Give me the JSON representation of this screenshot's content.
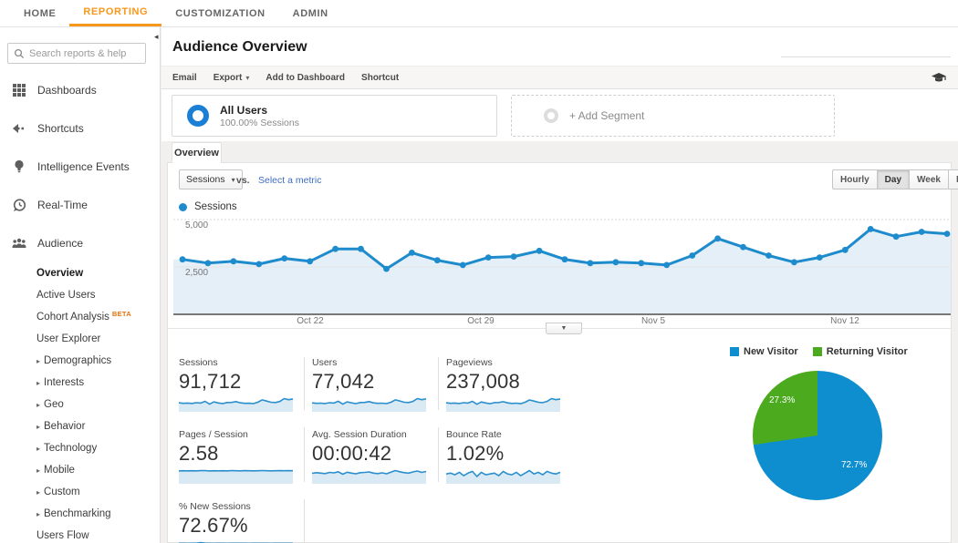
{
  "nav": {
    "items": [
      {
        "label": "HOME"
      },
      {
        "label": "REPORTING",
        "active": true
      },
      {
        "label": "CUSTOMIZATION"
      },
      {
        "label": "ADMIN"
      }
    ]
  },
  "sidebar": {
    "search_placeholder": "Search reports & help",
    "items": [
      {
        "label": "Dashboards",
        "icon": "dashboards-grid-icon"
      },
      {
        "label": "Shortcuts",
        "icon": "shortcuts-arrow-icon"
      },
      {
        "label": "Intelligence Events",
        "icon": "intelligence-bulb-icon"
      },
      {
        "label": "Real-Time",
        "icon": "real-time-clock-icon"
      },
      {
        "label": "Audience",
        "icon": "audience-people-icon"
      }
    ],
    "audience_children": [
      {
        "label": "Overview",
        "active": true
      },
      {
        "label": "Active Users"
      },
      {
        "label": "Cohort Analysis",
        "badge": "BETA"
      },
      {
        "label": "User Explorer"
      },
      {
        "label": "Demographics",
        "expandable": true
      },
      {
        "label": "Interests",
        "expandable": true
      },
      {
        "label": "Geo",
        "expandable": true
      },
      {
        "label": "Behavior",
        "expandable": true
      },
      {
        "label": "Technology",
        "expandable": true
      },
      {
        "label": "Mobile",
        "expandable": true
      },
      {
        "label": "Custom",
        "expandable": true
      },
      {
        "label": "Benchmarking",
        "expandable": true
      },
      {
        "label": "Users Flow"
      }
    ]
  },
  "header": {
    "title": "Audience Overview",
    "toolbar": {
      "email": "Email",
      "export": "Export",
      "add_to_dashboard": "Add to Dashboard",
      "shortcut": "Shortcut"
    }
  },
  "segments": {
    "all_users_title": "All Users",
    "all_users_subtitle": "100.00% Sessions",
    "add_segment_label": "+ Add Segment"
  },
  "tab_label": "Overview",
  "controls": {
    "metric_dropdown": "Sessions",
    "vs_label": "vs.",
    "select_metric_link": "Select a metric",
    "granularity": [
      "Hourly",
      "Day",
      "Week",
      "Month"
    ],
    "active_granularity": "Day"
  },
  "colors": {
    "accent_orange": "#f7981c",
    "line_blue": "#1e8bcd",
    "area_fill": "#e4eff8",
    "spark_blue": "#2b8fcd",
    "spark_fill": "#daeaf5",
    "pie_blue": "#0f8ecf",
    "pie_green": "#4caa1f"
  },
  "chart_data": [
    {
      "id": "sessions-timeline",
      "type": "area",
      "title": "Sessions",
      "x_ticks": [
        "Oct 22",
        "Oct 29",
        "Nov 5",
        "Nov 12"
      ],
      "y_tick_labels": [
        "5,000",
        "2,500"
      ],
      "y_ticks": [
        5000,
        2500
      ],
      "ylim": [
        0,
        5000
      ],
      "grid": "horizontal",
      "series": [
        {
          "name": "Sessions",
          "color": "#1e8bcd",
          "values": [
            2900,
            2700,
            2800,
            2650,
            2950,
            2800,
            3450,
            3450,
            2400,
            3250,
            2850,
            2600,
            3000,
            3050,
            3350,
            2900,
            2700,
            2750,
            2700,
            2600,
            3100,
            4000,
            3550,
            3100,
            2750,
            3000,
            3400,
            4500,
            4100,
            4350,
            4250
          ]
        }
      ]
    },
    {
      "id": "spark-sessions",
      "type": "area",
      "metric": "Sessions",
      "display_value": "91,712",
      "values": [
        2900,
        2700,
        2800,
        2650,
        2950,
        2800,
        3450,
        2400,
        3250,
        2850,
        2600,
        3000,
        3050,
        3350,
        2900,
        2700,
        2750,
        2600,
        3100,
        4000,
        3550,
        3100,
        3000,
        3400,
        4500,
        4100,
        4350
      ]
    },
    {
      "id": "spark-users",
      "type": "area",
      "metric": "Users",
      "display_value": "77,042",
      "values": [
        2400,
        2250,
        2300,
        2200,
        2450,
        2350,
        2900,
        2000,
        2700,
        2400,
        2150,
        2500,
        2550,
        2800,
        2400,
        2250,
        2300,
        2150,
        2600,
        3350,
        3000,
        2600,
        2500,
        2850,
        3750,
        3400,
        3650
      ]
    },
    {
      "id": "spark-pageviews",
      "type": "area",
      "metric": "Pageviews",
      "display_value": "237,008",
      "values": [
        7500,
        7000,
        7200,
        6800,
        7600,
        7200,
        8900,
        6100,
        8300,
        7300,
        6600,
        7700,
        7800,
        8600,
        7400,
        6900,
        7100,
        6600,
        8000,
        10300,
        9200,
        8000,
        7700,
        8800,
        11600,
        10500,
        11200
      ]
    },
    {
      "id": "spark-pages-session",
      "type": "area",
      "metric": "Pages / Session",
      "display_value": "2.58",
      "values": [
        2.55,
        2.57,
        2.56,
        2.58,
        2.55,
        2.59,
        2.62,
        2.54,
        2.58,
        2.56,
        2.57,
        2.55,
        2.6,
        2.58,
        2.56,
        2.59,
        2.57,
        2.55,
        2.58,
        2.61,
        2.57,
        2.56,
        2.58,
        2.6,
        2.57,
        2.59,
        2.58
      ]
    },
    {
      "id": "spark-duration",
      "type": "area",
      "metric": "Avg. Session Duration",
      "display_value": "00:00:42",
      "values": [
        40,
        43,
        41,
        39,
        44,
        42,
        47,
        36,
        45,
        41,
        38,
        43,
        44,
        46,
        41,
        39,
        42,
        38,
        45,
        52,
        47,
        43,
        41,
        46,
        50,
        44,
        48
      ]
    },
    {
      "id": "spark-bounce",
      "type": "area",
      "metric": "Bounce Rate",
      "display_value": "1.02%",
      "values": [
        1.0,
        1.1,
        0.9,
        1.2,
        0.8,
        1.1,
        1.3,
        0.7,
        1.2,
        0.9,
        1.0,
        1.1,
        0.8,
        1.3,
        1.0,
        0.9,
        1.2,
        0.8,
        1.1,
        1.4,
        1.0,
        1.2,
        0.9,
        1.3,
        1.1,
        1.0,
        1.2
      ]
    },
    {
      "id": "spark-new-sessions",
      "type": "area",
      "metric": "% New Sessions",
      "display_value": "72.67%",
      "values": [
        72.5,
        72.8,
        72.3,
        73.0,
        72.6,
        77.5,
        73.2,
        72.7,
        72.4,
        72.9,
        72.6,
        72.3,
        72.8,
        72.5,
        73.0,
        72.6,
        72.4,
        72.8,
        72.5,
        72.9,
        72.6,
        72.3,
        72.7,
        73.0,
        72.5,
        72.8,
        72.6
      ]
    },
    {
      "id": "visitor-type-pie",
      "type": "pie",
      "labels": [
        "New Visitor",
        "Returning Visitor"
      ],
      "values": [
        72.7,
        27.3
      ],
      "display_values": [
        "72.7%",
        "27.3%"
      ],
      "colors": [
        "#0f8ecf",
        "#4caa1f"
      ],
      "legend_position": "top"
    }
  ]
}
